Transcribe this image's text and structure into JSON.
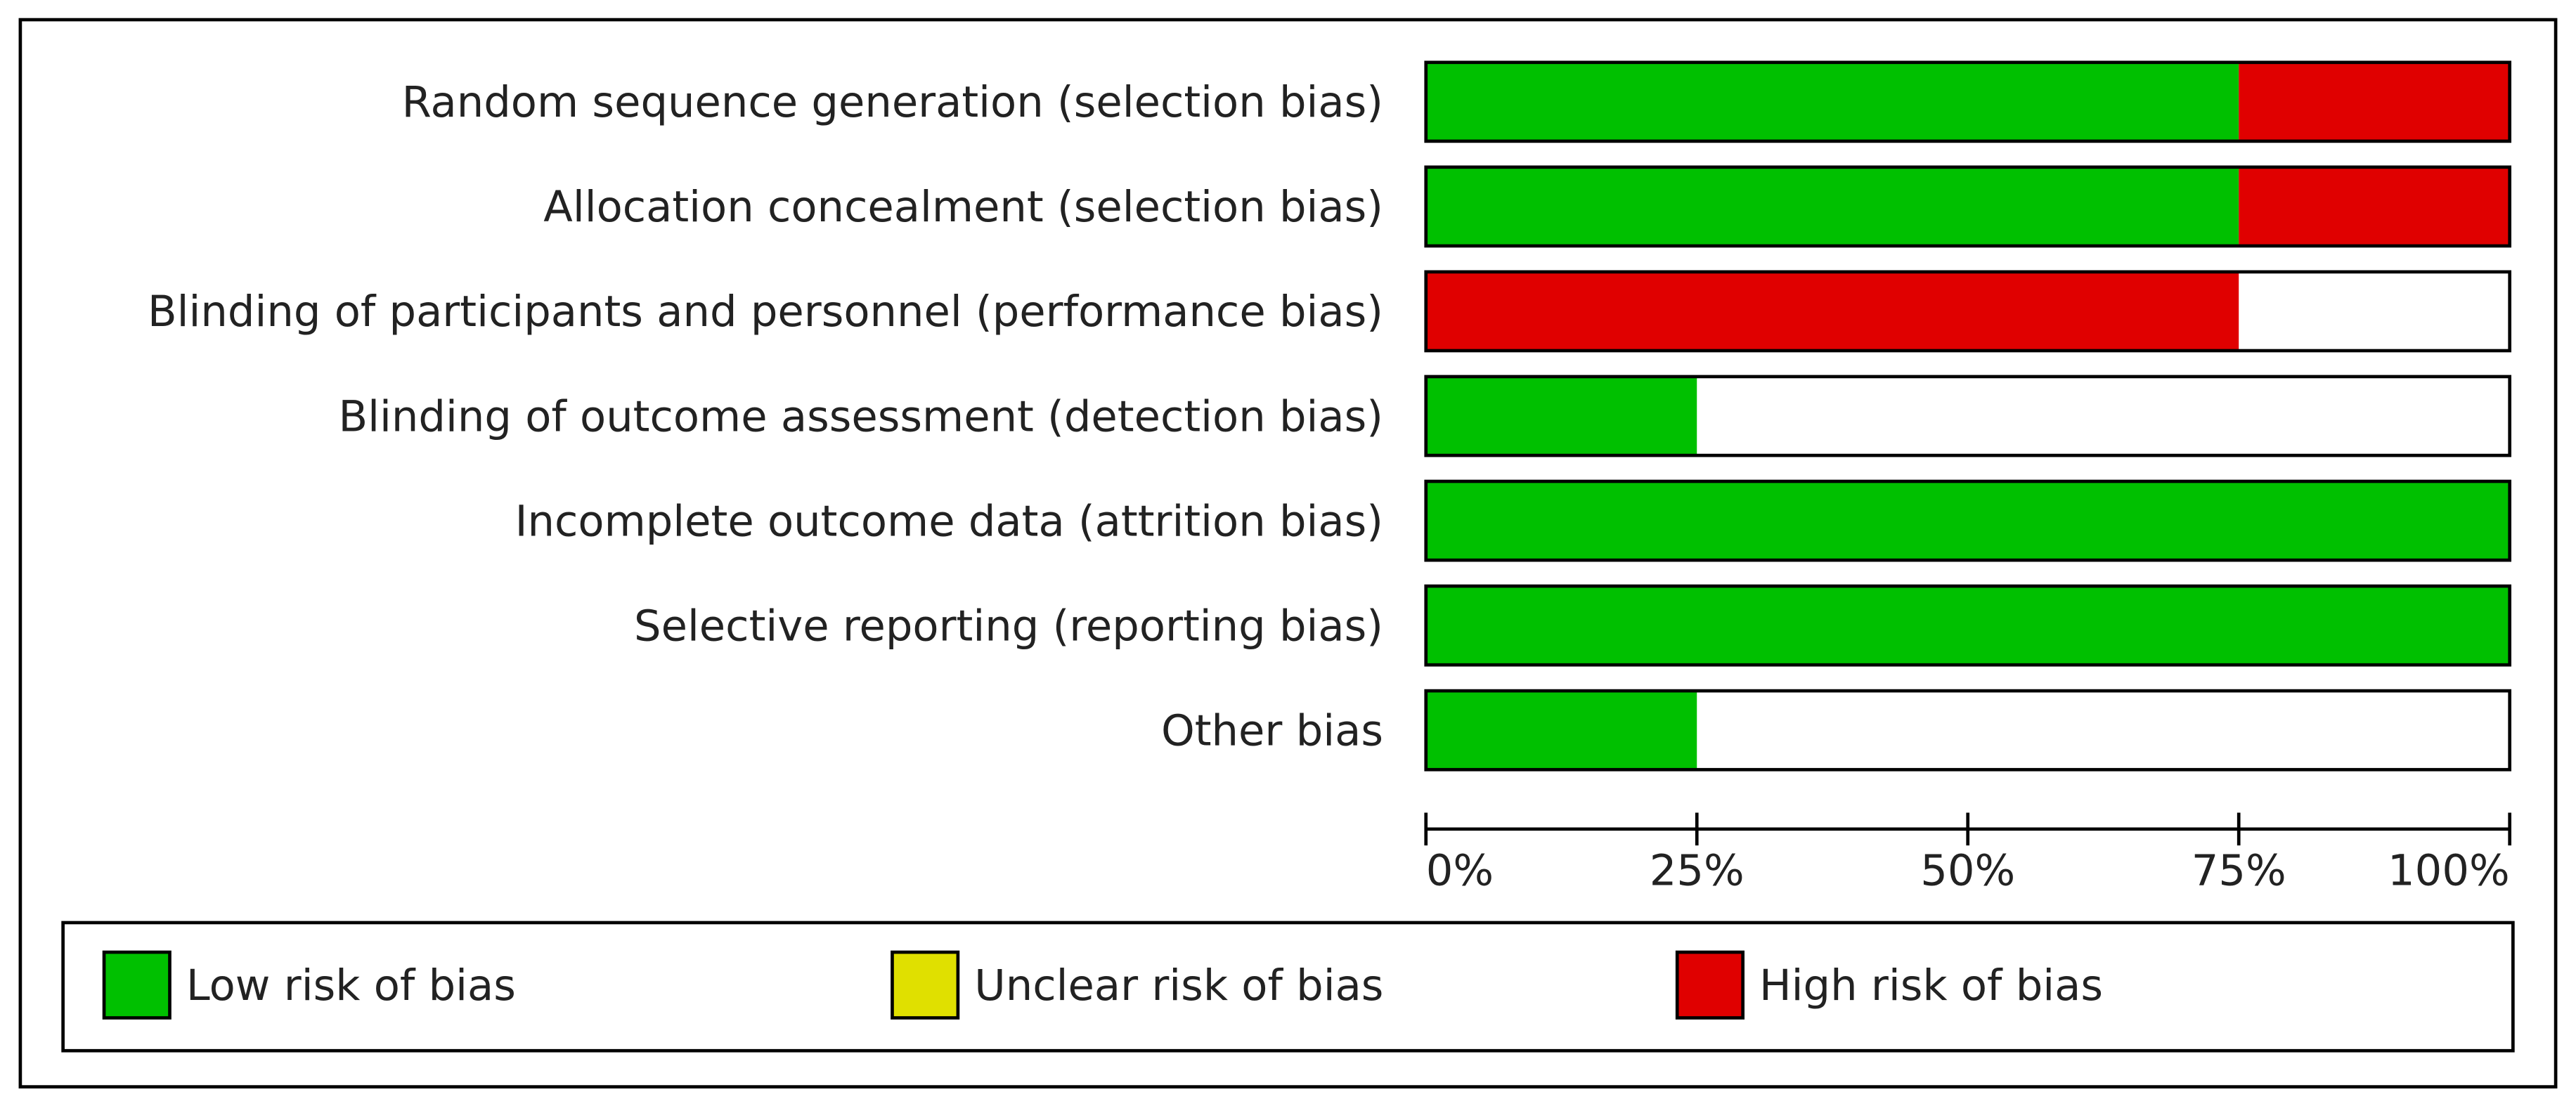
{
  "chart_data": {
    "type": "bar",
    "orientation": "horizontal",
    "stacked": true,
    "categories": [
      "Random sequence generation (selection bias)",
      "Allocation concealment (selection bias)",
      "Blinding of participants and personnel (performance bias)",
      "Blinding of outcome assessment (detection bias)",
      "Incomplete outcome data (attrition bias)",
      "Selective reporting (reporting bias)",
      "Other bias"
    ],
    "series": [
      {
        "name": "Low risk of bias",
        "color": "#00c000",
        "values": [
          75,
          75,
          0,
          25,
          100,
          100,
          25
        ]
      },
      {
        "name": "Unclear risk of bias",
        "color": "#e0e000",
        "values": [
          0,
          0,
          0,
          0,
          0,
          0,
          0
        ]
      },
      {
        "name": "High risk of bias",
        "color": "#e00000",
        "values": [
          25,
          25,
          75,
          0,
          0,
          0,
          0
        ]
      }
    ],
    "xlim": [
      0,
      100
    ],
    "xticks": [
      {
        "value": 0,
        "label": "0%"
      },
      {
        "value": 25,
        "label": "25%"
      },
      {
        "value": 50,
        "label": "50%"
      },
      {
        "value": 75,
        "label": "75%"
      },
      {
        "value": 100,
        "label": "100%"
      }
    ],
    "legend": "bottom"
  }
}
